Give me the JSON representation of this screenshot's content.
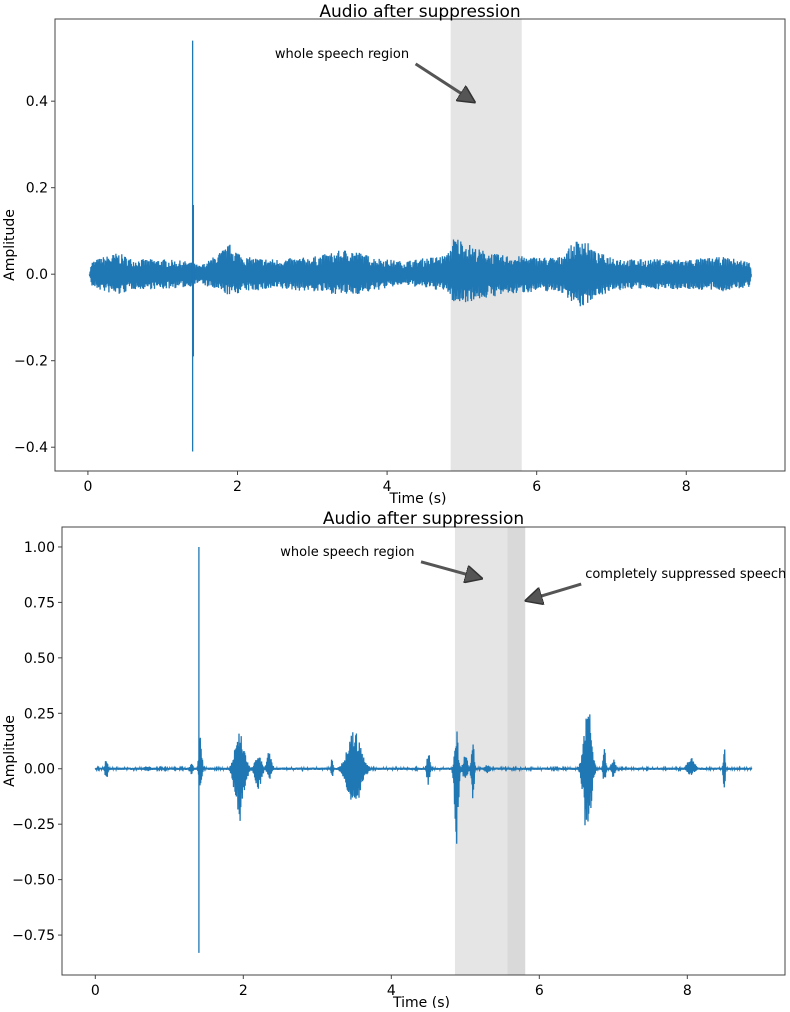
{
  "chart_data": [
    {
      "type": "line",
      "title": "Audio after suppression",
      "xlabel": "Time (s)",
      "ylabel": "Amplitude",
      "xlim": [
        -0.44,
        9.32
      ],
      "ylim": [
        -0.455,
        0.59
      ],
      "xticks": [
        0,
        2,
        4,
        6,
        8
      ],
      "xtick_labels": [
        "0",
        "2",
        "4",
        "6",
        "8"
      ],
      "yticks": [
        0.4,
        0.2,
        0.0,
        -0.2,
        -0.4
      ],
      "ytick_labels": [
        "0.4",
        "0.2",
        "0.0",
        "−0.2",
        "−0.4"
      ],
      "grid": false,
      "color": "#1f77b4",
      "baseline_noise": 0.0,
      "envelope": [
        [
          0.02,
          0,
          0
        ],
        [
          0.05,
          0.03,
          -0.03
        ],
        [
          0.2,
          0.04,
          -0.04
        ],
        [
          0.4,
          0.05,
          -0.05
        ],
        [
          0.6,
          0.035,
          -0.035
        ],
        [
          1.0,
          0.035,
          -0.035
        ],
        [
          1.35,
          0.03,
          -0.03
        ],
        [
          1.5,
          0.02,
          -0.02
        ],
        [
          1.6,
          0.03,
          -0.03
        ],
        [
          1.9,
          0.07,
          -0.05
        ],
        [
          2.1,
          0.04,
          -0.04
        ],
        [
          2.5,
          0.035,
          -0.035
        ],
        [
          3.0,
          0.04,
          -0.04
        ],
        [
          3.5,
          0.06,
          -0.05
        ],
        [
          3.8,
          0.04,
          -0.04
        ],
        [
          4.2,
          0.03,
          -0.025
        ],
        [
          4.8,
          0.045,
          -0.04
        ],
        [
          4.9,
          0.09,
          -0.07
        ],
        [
          5.2,
          0.06,
          -0.06
        ],
        [
          5.5,
          0.045,
          -0.05
        ],
        [
          6.0,
          0.04,
          -0.04
        ],
        [
          6.3,
          0.04,
          -0.04
        ],
        [
          6.6,
          0.09,
          -0.08
        ],
        [
          6.8,
          0.05,
          -0.05
        ],
        [
          7.2,
          0.035,
          -0.035
        ],
        [
          8.0,
          0.035,
          -0.035
        ],
        [
          8.5,
          0.04,
          -0.04
        ],
        [
          8.85,
          0.03,
          -0.03
        ],
        [
          8.87,
          0,
          0
        ]
      ],
      "bursts": [],
      "spikes": [
        [
          1.4,
          0.54,
          -0.41
        ],
        [
          1.41,
          0.16,
          -0.19
        ]
      ],
      "regions": [
        {
          "start": 4.85,
          "end": 5.8,
          "color": "#e5e5e5"
        }
      ],
      "annotations": [
        {
          "text": "whole speech region",
          "text_pos": [
            2.5,
            0.5
          ],
          "arrow_to": [
            5.15,
            0.4
          ]
        }
      ]
    },
    {
      "type": "line",
      "title": "Audio after suppression",
      "xlabel": "Time (s)",
      "ylabel": "Amplitude",
      "xlim": [
        -0.45,
        9.32
      ],
      "ylim": [
        -0.93,
        1.09
      ],
      "xticks": [
        0,
        2,
        4,
        6,
        8
      ],
      "xtick_labels": [
        "0",
        "2",
        "4",
        "6",
        "8"
      ],
      "yticks": [
        1.0,
        0.75,
        0.5,
        0.25,
        0.0,
        -0.25,
        -0.5,
        -0.75
      ],
      "ytick_labels": [
        "1.00",
        "0.75",
        "0.50",
        "0.25",
        "0.00",
        "−0.25",
        "−0.50",
        "−0.75"
      ],
      "grid": false,
      "color": "#1f77b4",
      "baseline_noise": 0.005,
      "envelope": [
        [
          0.0,
          0.005,
          -0.005
        ],
        [
          8.87,
          0.005,
          -0.005
        ]
      ],
      "bursts": [
        [
          0.15,
          0.03,
          0.05,
          -0.05
        ],
        [
          0.7,
          0.08,
          0.012,
          -0.012
        ],
        [
          1.3,
          0.03,
          0.03,
          -0.03
        ],
        [
          1.42,
          0.03,
          0.17,
          -0.1
        ],
        [
          1.95,
          0.1,
          0.18,
          -0.24
        ],
        [
          2.2,
          0.07,
          0.07,
          -0.1
        ],
        [
          2.35,
          0.05,
          0.08,
          -0.05
        ],
        [
          3.2,
          0.02,
          0.06,
          -0.06
        ],
        [
          3.5,
          0.15,
          0.17,
          -0.2
        ],
        [
          4.5,
          0.03,
          0.1,
          -0.08
        ],
        [
          4.88,
          0.04,
          0.18,
          -0.36
        ],
        [
          5.0,
          0.05,
          0.06,
          -0.06
        ],
        [
          5.1,
          0.03,
          0.13,
          -0.16
        ],
        [
          5.3,
          0.06,
          0.02,
          -0.02
        ],
        [
          6.65,
          0.08,
          0.32,
          -0.33
        ],
        [
          6.88,
          0.03,
          0.09,
          -0.07
        ],
        [
          7.0,
          0.04,
          0.06,
          -0.04
        ],
        [
          8.05,
          0.08,
          0.05,
          -0.03
        ],
        [
          8.5,
          0.02,
          0.13,
          -0.13
        ]
      ],
      "spikes": [
        [
          1.4,
          1.0,
          -0.83
        ]
      ],
      "regions": [
        {
          "start": 4.86,
          "end": 5.57,
          "color": "#e5e5e5"
        },
        {
          "start": 5.57,
          "end": 5.81,
          "color": "#d9d9d9"
        }
      ],
      "annotations": [
        {
          "text": "whole speech region",
          "text_pos": [
            2.5,
            0.96
          ],
          "arrow_to": [
            5.2,
            0.86
          ]
        },
        {
          "text": "completely suppressed speech",
          "text_pos": [
            6.62,
            0.86
          ],
          "arrow_to": [
            5.84,
            0.76
          ]
        }
      ]
    }
  ]
}
